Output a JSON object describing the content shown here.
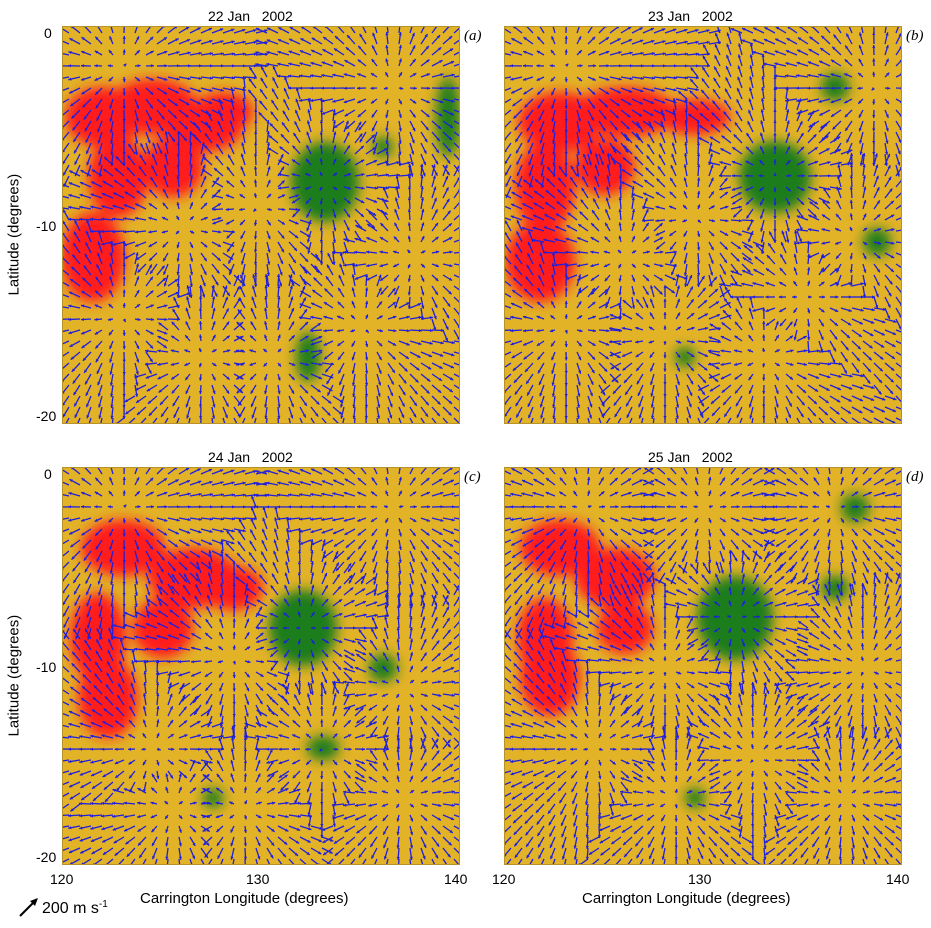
{
  "panels": [
    {
      "title": "22 Jan   2002",
      "label": "(a)"
    },
    {
      "title": "23 Jan   2002",
      "label": "(b)"
    },
    {
      "title": "24 Jan   2002",
      "label": "(c)"
    },
    {
      "title": "25 Jan   2002",
      "label": "(d)"
    }
  ],
  "axes": {
    "ylabel": "Latitude (degrees)",
    "xlabel": "Carrington Longitude (degrees)",
    "yticks": [
      "0",
      "-10",
      "-20"
    ],
    "xticks": [
      "120",
      "130",
      "140"
    ]
  },
  "scale": {
    "value": "200 m s",
    "exponent": "-1"
  },
  "colors": {
    "background": "#e2b227",
    "negative": "#ff1e1e",
    "positive": "#1e7d1e",
    "arrows": "#1f1fdd"
  }
}
